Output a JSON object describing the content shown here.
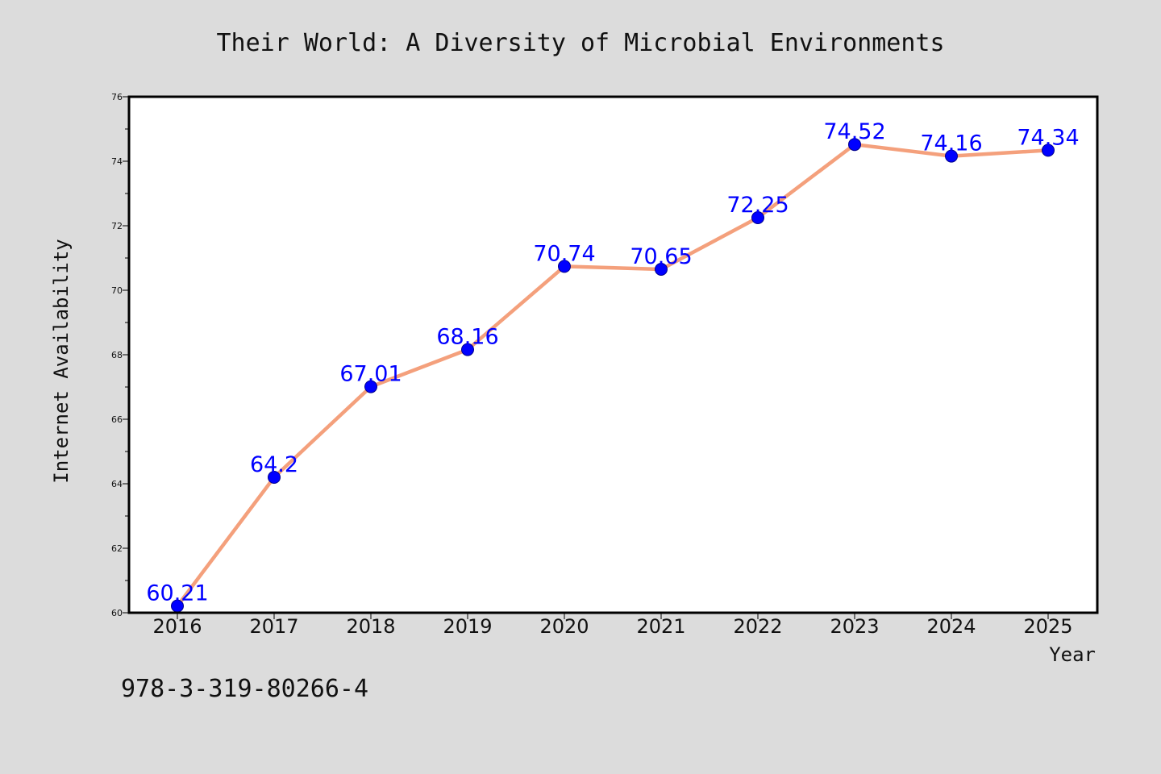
{
  "chart_data": {
    "type": "line",
    "title": "Their World: A Diversity of Microbial Environments",
    "xlabel": "Year",
    "ylabel": "Internet Availability",
    "categories": [
      "2016",
      "2017",
      "2018",
      "2019",
      "2020",
      "2021",
      "2022",
      "2023",
      "2024",
      "2025"
    ],
    "values": [
      60.21,
      64.2,
      67.01,
      68.16,
      70.74,
      70.65,
      72.25,
      74.52,
      74.16,
      74.34
    ],
    "data_labels": [
      "60.21",
      "64.2",
      "67.01",
      "68.16",
      "70.74",
      "70.65",
      "72.25",
      "74.52",
      "74.16",
      "74.34"
    ],
    "ylim": [
      60,
      76
    ],
    "yticks": [
      "60",
      "62",
      "64",
      "66",
      "68",
      "70",
      "72",
      "74",
      "76"
    ],
    "grid": false,
    "colors": {
      "line": "#f4a07c",
      "marker": "#0000ff",
      "data_label": "#0000ff",
      "background": "#dcdcdc",
      "plot_area": "#ffffff"
    }
  },
  "footer": {
    "isbn": "978-3-319-80266-4"
  }
}
